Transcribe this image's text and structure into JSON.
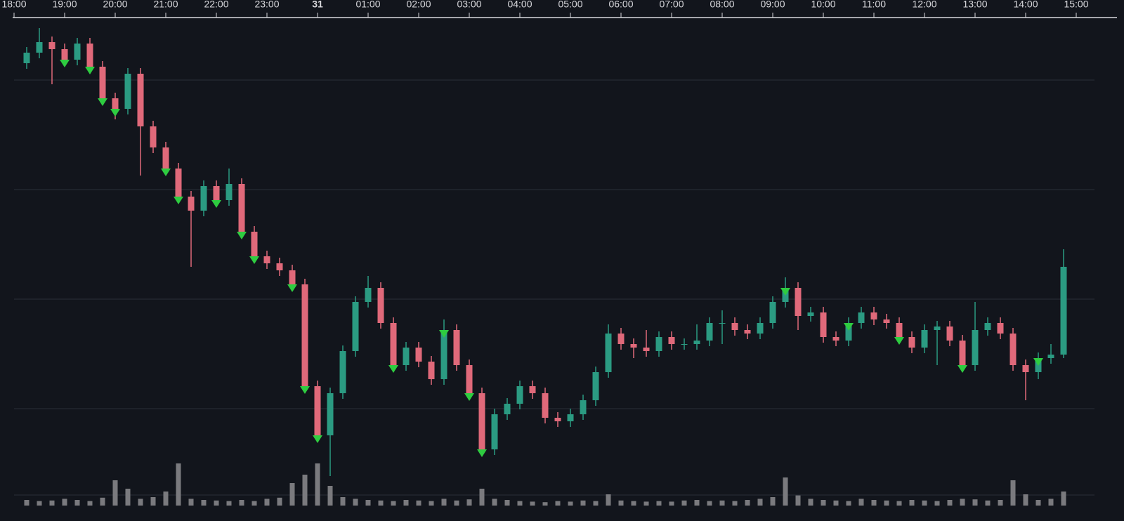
{
  "chart_data": {
    "type": "candlestick",
    "xlim": [
      0,
      21
    ],
    "xticks": [
      {
        "value": 0,
        "label": "18:00"
      },
      {
        "value": 1,
        "label": "19:00"
      },
      {
        "value": 2,
        "label": "20:00"
      },
      {
        "value": 3,
        "label": "21:00"
      },
      {
        "value": 4,
        "label": "22:00"
      },
      {
        "value": 5,
        "label": "23:00"
      },
      {
        "value": 6,
        "label": "31"
      },
      {
        "value": 7,
        "label": "01:00"
      },
      {
        "value": 8,
        "label": "02:00"
      },
      {
        "value": 9,
        "label": "03:00"
      },
      {
        "value": 10,
        "label": "04:00"
      },
      {
        "value": 11,
        "label": "05:00"
      },
      {
        "value": 12,
        "label": "06:00"
      },
      {
        "value": 13,
        "label": "07:00"
      },
      {
        "value": 14,
        "label": "08:00"
      },
      {
        "value": 15,
        "label": "09:00"
      },
      {
        "value": 16,
        "label": "10:00"
      },
      {
        "value": 17,
        "label": "11:00"
      },
      {
        "value": 18,
        "label": "12:00"
      },
      {
        "value": 19,
        "label": "13:00"
      },
      {
        "value": 20,
        "label": "14:00"
      },
      {
        "value": 21,
        "label": "15:00"
      }
    ],
    "ylim": [
      0,
      705
    ],
    "grid_values": [
      25,
      148,
      304,
      460,
      616
    ],
    "volume_lim": [
      0,
      100
    ],
    "up_color": "#2b9b82",
    "down_color": "#e0697a",
    "volume_color": "#7a7a7e",
    "x": [
      0.25,
      0.5,
      0.75,
      1,
      1.25,
      1.5,
      1.75,
      2,
      2.25,
      2.5,
      2.75,
      3,
      3.25,
      3.5,
      3.75,
      4,
      4.25,
      4.5,
      4.75,
      5,
      5.25,
      5.5,
      5.75,
      6,
      6.25,
      6.5,
      6.75,
      7,
      7.25,
      7.5,
      7.75,
      8,
      8.25,
      8.5,
      8.75,
      9,
      9.25,
      9.5,
      9.75,
      10,
      10.25,
      10.5,
      10.75,
      11,
      11.25,
      11.5,
      11.75,
      12,
      12.25,
      12.5,
      12.75,
      13,
      13.25,
      13.5,
      13.75,
      14,
      14.25,
      14.5,
      14.75,
      15,
      15.25,
      15.5,
      15.75,
      16,
      16.25,
      16.5,
      16.75,
      17,
      17.25,
      17.5,
      17.75,
      18,
      18.25,
      18.5,
      18.75,
      19,
      19.25,
      19.5,
      19.75,
      20,
      20.25,
      20.5,
      20.75
    ],
    "open": [
      640,
      655,
      670,
      660,
      645,
      668,
      635,
      590,
      575,
      625,
      550,
      520,
      490,
      450,
      430,
      465,
      445,
      468,
      400,
      365,
      355,
      345,
      325,
      180,
      110,
      170,
      230,
      300,
      320,
      270,
      210,
      235,
      215,
      190,
      260,
      210,
      170,
      90,
      140,
      155,
      180,
      170,
      135,
      130,
      140,
      160,
      200,
      255,
      240,
      235,
      230,
      250,
      240,
      240,
      245,
      270,
      270,
      260,
      255,
      270,
      300,
      320,
      280,
      285,
      250,
      245,
      270,
      285,
      275,
      270,
      250,
      235,
      260,
      265,
      245,
      210,
      260,
      270,
      255,
      210,
      200,
      220,
      225
    ],
    "high": [
      663,
      690,
      678,
      668,
      676,
      676,
      643,
      598,
      633,
      633,
      558,
      528,
      498,
      458,
      473,
      473,
      490,
      476,
      408,
      373,
      363,
      353,
      333,
      188,
      178,
      238,
      308,
      337,
      328,
      278,
      243,
      243,
      223,
      275,
      268,
      218,
      178,
      148,
      163,
      188,
      188,
      178,
      143,
      148,
      168,
      208,
      268,
      263,
      248,
      260,
      258,
      258,
      248,
      268,
      278,
      288,
      278,
      268,
      278,
      308,
      335,
      328,
      293,
      293,
      258,
      278,
      293,
      293,
      283,
      278,
      258,
      268,
      273,
      273,
      253,
      300,
      278,
      278,
      263,
      218,
      228,
      240,
      375
    ],
    "low": [
      632,
      647,
      610,
      637,
      637,
      627,
      582,
      560,
      567,
      480,
      512,
      482,
      442,
      350,
      422,
      437,
      437,
      392,
      357,
      347,
      337,
      317,
      172,
      102,
      52,
      162,
      222,
      292,
      262,
      202,
      202,
      207,
      182,
      182,
      202,
      162,
      80,
      82,
      132,
      147,
      162,
      127,
      122,
      122,
      132,
      152,
      192,
      232,
      220,
      222,
      222,
      232,
      232,
      232,
      237,
      240,
      252,
      247,
      247,
      262,
      292,
      260,
      272,
      242,
      237,
      237,
      262,
      267,
      262,
      242,
      227,
      227,
      210,
      237,
      202,
      202,
      252,
      247,
      202,
      160,
      190,
      212,
      220
    ],
    "close": [
      655,
      670,
      660,
      645,
      668,
      635,
      590,
      575,
      625,
      550,
      520,
      490,
      450,
      430,
      465,
      445,
      468,
      400,
      365,
      355,
      345,
      325,
      180,
      110,
      170,
      230,
      300,
      320,
      270,
      210,
      235,
      215,
      190,
      260,
      210,
      170,
      90,
      140,
      155,
      180,
      170,
      135,
      130,
      140,
      160,
      200,
      255,
      240,
      235,
      230,
      250,
      240,
      240,
      245,
      270,
      270,
      260,
      255,
      270,
      300,
      320,
      280,
      285,
      250,
      245,
      270,
      285,
      275,
      270,
      250,
      235,
      260,
      265,
      245,
      210,
      260,
      270,
      255,
      210,
      200,
      220,
      225,
      350
    ],
    "volume": [
      10,
      8,
      9,
      12,
      10,
      8,
      14,
      45,
      30,
      12,
      15,
      25,
      75,
      12,
      10,
      9,
      8,
      10,
      8,
      12,
      14,
      40,
      55,
      75,
      35,
      15,
      12,
      10,
      9,
      8,
      10,
      9,
      8,
      12,
      9,
      11,
      30,
      12,
      10,
      8,
      7,
      6,
      8,
      7,
      9,
      8,
      20,
      9,
      8,
      7,
      8,
      7,
      9,
      10,
      8,
      9,
      8,
      10,
      12,
      15,
      50,
      18,
      12,
      10,
      9,
      8,
      12,
      10,
      9,
      8,
      10,
      9,
      8,
      10,
      12,
      11,
      9,
      10,
      45,
      20,
      10,
      12,
      25
    ],
    "signals": {
      "color": "#2ecc40",
      "x": [
        1,
        1.5,
        1.75,
        2,
        3,
        3.25,
        4,
        4.5,
        4.75,
        5.5,
        5.75,
        6,
        7.5,
        8.5,
        9,
        9.25,
        15.25,
        16.5,
        17.5,
        18.75,
        20.25
      ]
    }
  }
}
